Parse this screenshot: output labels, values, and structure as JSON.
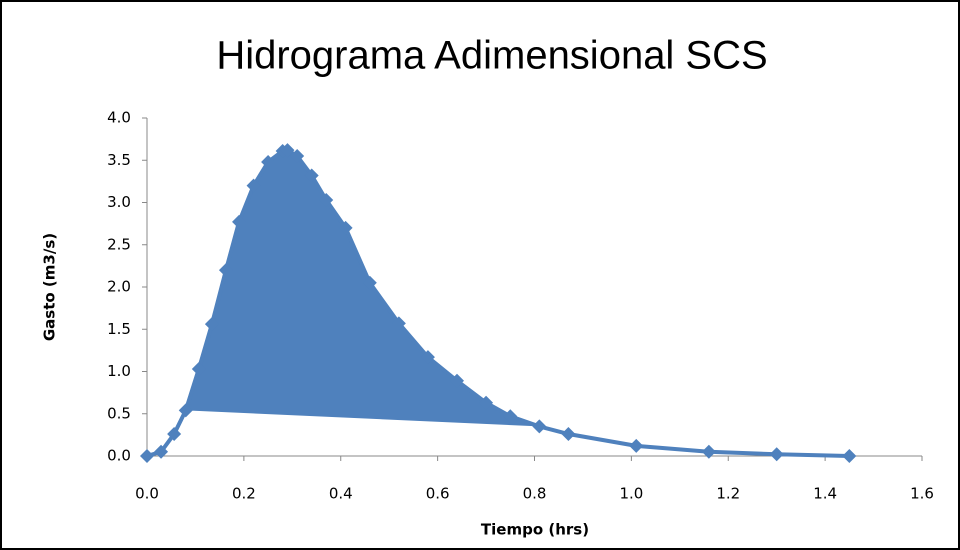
{
  "chart_data": {
    "type": "line",
    "title": "Hidrograma Adimensional SCS",
    "xlabel": "Tiempo (hrs)",
    "ylabel": "Gasto  (m3/s)",
    "series": [
      {
        "name": "Gasto",
        "color": "#4f81bd",
        "x": [
          0,
          0.029,
          0.056,
          0.08,
          0.107,
          0.134,
          0.163,
          0.19,
          0.22,
          0.25,
          0.28,
          0.29,
          0.31,
          0.34,
          0.37,
          0.41,
          0.46,
          0.52,
          0.58,
          0.64,
          0.7,
          0.75,
          0.81,
          0.87,
          1.01,
          1.16,
          1.3,
          1.45
        ],
        "values": [
          0,
          0.05,
          0.26,
          0.54,
          1.03,
          1.56,
          2.2,
          2.77,
          3.2,
          3.48,
          3.61,
          3.62,
          3.55,
          3.32,
          3.03,
          2.7,
          2.05,
          1.57,
          1.17,
          0.89,
          0.63,
          0.47,
          0.35,
          0.26,
          0.12,
          0.05,
          0.02,
          0
        ]
      }
    ],
    "xlim": [
      0,
      1.6
    ],
    "xticks": [
      {
        "value": 0,
        "label": "0.0"
      },
      {
        "value": 0.2,
        "label": "0.2"
      },
      {
        "value": 0.4,
        "label": "0.4"
      },
      {
        "value": 0.6,
        "label": "0.6"
      },
      {
        "value": 0.8,
        "label": "0.8"
      },
      {
        "value": 1,
        "label": "1.0"
      },
      {
        "value": 1.2,
        "label": "1.2"
      },
      {
        "value": 1.4,
        "label": "1.4"
      },
      {
        "value": 1.6,
        "label": "1.6"
      }
    ],
    "ylim": [
      0,
      4
    ],
    "yticks": [
      {
        "value": 0,
        "label": "0.0"
      },
      {
        "value": 0.5,
        "label": "0.5"
      },
      {
        "value": 1,
        "label": "1.0"
      },
      {
        "value": 1.5,
        "label": "1.5"
      },
      {
        "value": 2,
        "label": "2.0"
      },
      {
        "value": 2.5,
        "label": "2.5"
      },
      {
        "value": 3,
        "label": "3.0"
      },
      {
        "value": 3.5,
        "label": "3.5"
      },
      {
        "value": 4,
        "label": "4.0"
      }
    ],
    "grid": false
  }
}
